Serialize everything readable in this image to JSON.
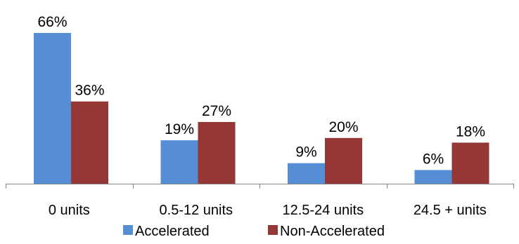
{
  "chart_data": {
    "type": "bar",
    "title": "",
    "xlabel": "",
    "ylabel": "",
    "categories": [
      "0 units",
      "0.5-12 units",
      "12.5-24 units",
      "24.5 + units"
    ],
    "series": [
      {
        "name": "Accelerated",
        "values": [
          66,
          19,
          9,
          6
        ],
        "labels": [
          "66%",
          "19%",
          "9%",
          "6%"
        ],
        "color": "#558ED5"
      },
      {
        "name": "Non-Accelerated",
        "values": [
          36,
          27,
          20,
          18
        ],
        "labels": [
          "36%",
          "27%",
          "20%",
          "18%"
        ],
        "color": "#953735"
      }
    ],
    "unit": "%",
    "ylim": [
      0,
      70
    ],
    "grid": false,
    "legend_position": "bottom",
    "axis_color": "#868686"
  }
}
